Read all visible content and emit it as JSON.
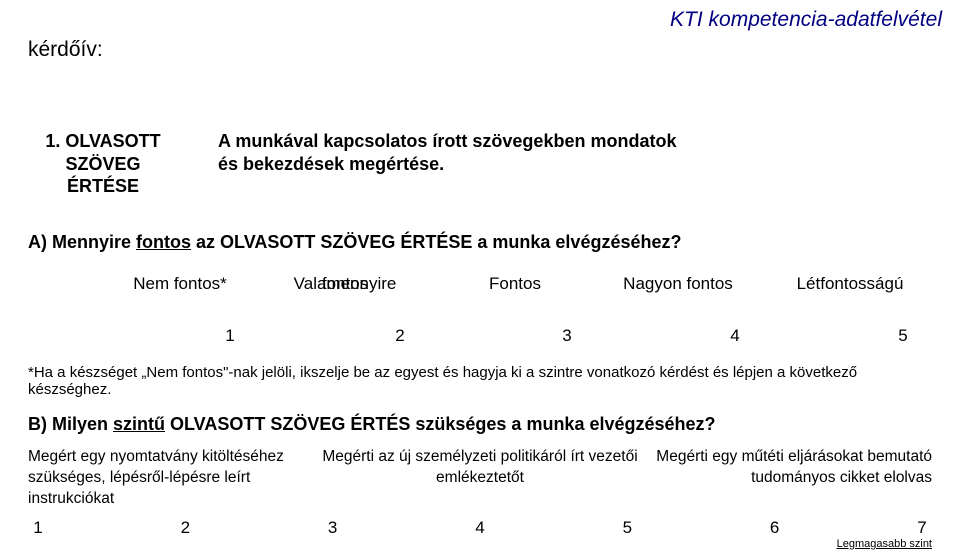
{
  "header": {
    "brand": "KTI kompetencia-adatfelvétel",
    "left": "kérdőív:"
  },
  "intro": {
    "title_l1": "1. OLVASOTT",
    "title_l2": "SZÖVEG",
    "title_l3": "ÉRTÉSE",
    "desc_l1": "A munkával kapcsolatos írott szövegekben mondatok",
    "desc_l2": "és bekezdések megértése."
  },
  "questionA": {
    "prefix": "A) Mennyire ",
    "ul": "fontos",
    "suffix": " az OLVASOTT SZÖVEG ÉRTÉSE a munka elvégzéséhez?",
    "labels": {
      "c0": "Nem fontos*",
      "c1": "Valamennyire",
      "c1b": "fontos",
      "c2": "Fontos",
      "c3": "Nagyon fontos",
      "c4": "Létfontosságú"
    },
    "nums": {
      "n1": "1",
      "n2": "2",
      "n3": "3",
      "n4": "4",
      "n5": "5"
    },
    "note": "*Ha a készséget „Nem fontos\"-nak jelöli, ikszelje be az egyest és hagyja ki a szintre vonatkozó kérdést és lépjen a következő készséghez."
  },
  "questionB": {
    "prefix": "B) Milyen ",
    "ul": "szintű",
    "suffix": " OLVASOTT SZÖVEG ÉRTÉS szükséges a munka elvégzéséhez?",
    "row1": {
      "l": "Megért egy nyomtatvány kitöltéséhez",
      "m": "Megérti az új személyzeti politikáról írt vezetői",
      "r": "Megérti egy műtéti eljárásokat bemutató"
    },
    "row2": {
      "l": "szükséges, lépésről-lépésre leírt",
      "m": "emlékeztetőt",
      "r": "tudományos cikket elolvas"
    },
    "row3": {
      "l": "instrukciókat",
      "m": "",
      "r": ""
    },
    "nums": {
      "n1": "1",
      "n2": "2",
      "n3": "3",
      "n4": "4",
      "n5": "5",
      "n6": "6",
      "n7": "7"
    },
    "foot": "Legmagasabb szint"
  },
  "colors": {
    "brand": "#000080",
    "text": "#000000",
    "bg": "#ffffff"
  }
}
